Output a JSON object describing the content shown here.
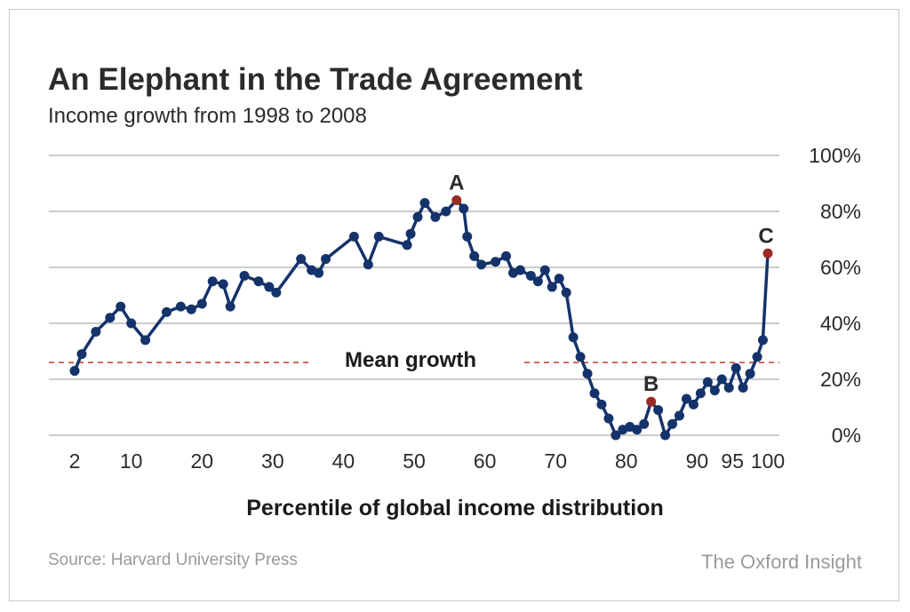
{
  "header": {
    "title": "An Elephant in the Trade Agreement",
    "subtitle": "Income growth from 1998 to 2008"
  },
  "footer": {
    "source": "Source: Harvard University Press",
    "brand": "The Oxford Insight"
  },
  "colors": {
    "line": "#15336b",
    "highlight": "#9b2a22",
    "mean_line": "#c0392b",
    "grid": "#9a9a9a"
  },
  "chart_data": {
    "type": "line",
    "title": "An Elephant in the Trade Agreement",
    "subtitle": "Income growth from 1998 to 2008",
    "xlabel": "Percentile of global income distribution",
    "ylabel": "",
    "xlim": [
      2,
      100
    ],
    "ylim": [
      0,
      100
    ],
    "x_ticks": [
      {
        "value": 2,
        "label": "2"
      },
      {
        "value": 10,
        "label": "10"
      },
      {
        "value": 20,
        "label": "20"
      },
      {
        "value": 30,
        "label": "30"
      },
      {
        "value": 40,
        "label": "40"
      },
      {
        "value": 50,
        "label": "50"
      },
      {
        "value": 60,
        "label": "60"
      },
      {
        "value": 70,
        "label": "70"
      },
      {
        "value": 80,
        "label": "80"
      },
      {
        "value": 90,
        "label": "90"
      },
      {
        "value": 95,
        "label": "95"
      },
      {
        "value": 100,
        "label": "100"
      }
    ],
    "y_ticks": [
      {
        "value": 0,
        "label": "0%"
      },
      {
        "value": 20,
        "label": "20%"
      },
      {
        "value": 40,
        "label": "40%"
      },
      {
        "value": 60,
        "label": "60%"
      },
      {
        "value": 80,
        "label": "80%"
      },
      {
        "value": 100,
        "label": "100%"
      }
    ],
    "grid": true,
    "mean_growth": {
      "value": 26,
      "label": "Mean growth"
    },
    "series": [
      {
        "points": [
          {
            "x": 2,
            "y": 23
          },
          {
            "x": 3,
            "y": 29
          },
          {
            "x": 5,
            "y": 37
          },
          {
            "x": 7,
            "y": 42
          },
          {
            "x": 8.5,
            "y": 46
          },
          {
            "x": 10,
            "y": 40
          },
          {
            "x": 12,
            "y": 34
          },
          {
            "x": 15,
            "y": 44
          },
          {
            "x": 17,
            "y": 46
          },
          {
            "x": 18.5,
            "y": 45
          },
          {
            "x": 20,
            "y": 47
          },
          {
            "x": 21.5,
            "y": 55
          },
          {
            "x": 23,
            "y": 54
          },
          {
            "x": 24,
            "y": 46
          },
          {
            "x": 26,
            "y": 57
          },
          {
            "x": 28,
            "y": 55
          },
          {
            "x": 29.5,
            "y": 53
          },
          {
            "x": 30.5,
            "y": 51
          },
          {
            "x": 34,
            "y": 63
          },
          {
            "x": 35.5,
            "y": 59
          },
          {
            "x": 36.5,
            "y": 58
          },
          {
            "x": 37.5,
            "y": 63
          },
          {
            "x": 41.5,
            "y": 71
          },
          {
            "x": 43.5,
            "y": 61
          },
          {
            "x": 45,
            "y": 71
          },
          {
            "x": 49,
            "y": 68
          },
          {
            "x": 49.5,
            "y": 72
          },
          {
            "x": 50.5,
            "y": 78
          },
          {
            "x": 51.5,
            "y": 83
          },
          {
            "x": 53,
            "y": 78
          },
          {
            "x": 54.5,
            "y": 80
          },
          {
            "x": 56,
            "y": 84
          },
          {
            "x": 57,
            "y": 81
          },
          {
            "x": 57.5,
            "y": 71
          },
          {
            "x": 58.5,
            "y": 64
          },
          {
            "x": 59.5,
            "y": 61
          },
          {
            "x": 61.5,
            "y": 62
          },
          {
            "x": 63,
            "y": 64
          },
          {
            "x": 64,
            "y": 58
          },
          {
            "x": 65,
            "y": 59
          },
          {
            "x": 66.5,
            "y": 57
          },
          {
            "x": 67.5,
            "y": 55
          },
          {
            "x": 68.5,
            "y": 59
          },
          {
            "x": 69.5,
            "y": 53
          },
          {
            "x": 70.5,
            "y": 56
          },
          {
            "x": 71.5,
            "y": 51
          },
          {
            "x": 72.5,
            "y": 35
          },
          {
            "x": 73.5,
            "y": 28
          },
          {
            "x": 74.5,
            "y": 22
          },
          {
            "x": 75.5,
            "y": 15
          },
          {
            "x": 76.5,
            "y": 11
          },
          {
            "x": 77.5,
            "y": 6
          },
          {
            "x": 78.5,
            "y": 0
          },
          {
            "x": 79.5,
            "y": 2
          },
          {
            "x": 80.5,
            "y": 3
          },
          {
            "x": 81.5,
            "y": 2
          },
          {
            "x": 82.5,
            "y": 4
          },
          {
            "x": 83.5,
            "y": 12
          },
          {
            "x": 84.5,
            "y": 9
          },
          {
            "x": 85.5,
            "y": 0
          },
          {
            "x": 86.5,
            "y": 4
          },
          {
            "x": 87.5,
            "y": 7
          },
          {
            "x": 88.5,
            "y": 13
          },
          {
            "x": 89.5,
            "y": 11
          },
          {
            "x": 90.5,
            "y": 15
          },
          {
            "x": 91.5,
            "y": 19
          },
          {
            "x": 92.5,
            "y": 16
          },
          {
            "x": 93.5,
            "y": 20
          },
          {
            "x": 94.5,
            "y": 17
          },
          {
            "x": 95.5,
            "y": 24
          },
          {
            "x": 96.5,
            "y": 17
          },
          {
            "x": 97.5,
            "y": 22
          },
          {
            "x": 98.5,
            "y": 28
          },
          {
            "x": 99.3,
            "y": 34
          },
          {
            "x": 100,
            "y": 65
          }
        ]
      }
    ],
    "annotations": [
      {
        "label": "A",
        "x": 56,
        "y": 84
      },
      {
        "label": "B",
        "x": 83.5,
        "y": 12
      },
      {
        "label": "C",
        "x": 100,
        "y": 65
      }
    ]
  }
}
